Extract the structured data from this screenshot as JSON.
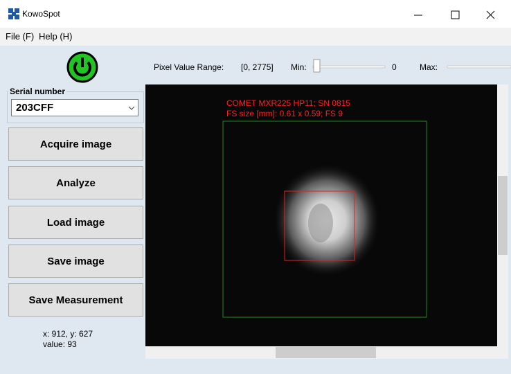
{
  "window": {
    "title": "KowoSpot"
  },
  "menu": {
    "items": [
      "File (F)",
      "Help (H)"
    ]
  },
  "toolbar": {
    "range_label": "Pixel Value Range:",
    "range_value": "[0, 2775]",
    "min_label": "Min:",
    "min_value": "0",
    "max_label": "Max:"
  },
  "serial": {
    "label": "Serial number",
    "value": "203CFF"
  },
  "buttons": [
    "Acquire image",
    "Analyze",
    "Load image",
    "Save image",
    "Save Measurement"
  ],
  "status": {
    "position": "x: 912, y: 627",
    "value": "value: 93"
  },
  "image": {
    "annotations": [
      "COMET MXR225 HP11; SN  0815",
      "FS size [mm]: 0.61 x 0.59; FS 9"
    ]
  }
}
